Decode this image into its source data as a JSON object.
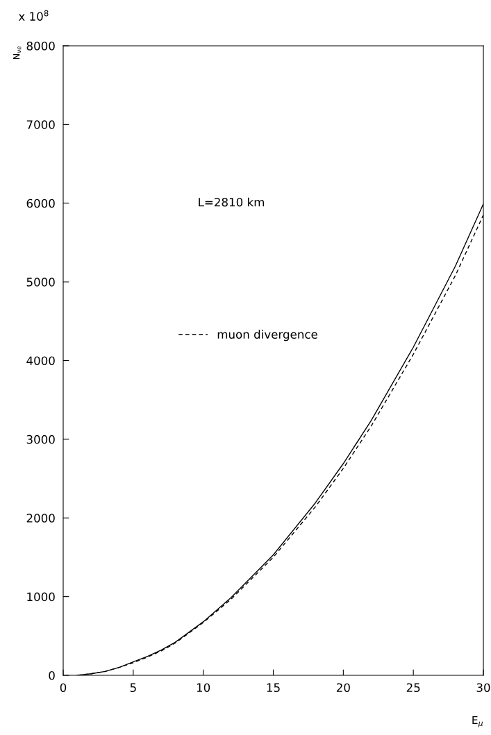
{
  "chart_data": {
    "type": "line",
    "xlabel": "E$_{μ}$",
    "ylabel": "N$_{νe}$",
    "annotations": [
      "x 10$^{8}$",
      "L=2810 km"
    ],
    "series": [
      {
        "color": "#000000",
        "line_style": "solid",
        "x": [
          1,
          2,
          3,
          4,
          5,
          6,
          7,
          8,
          10,
          12,
          15,
          18,
          20,
          22,
          25,
          28,
          30
        ],
        "values": [
          0,
          20,
          50,
          100,
          170,
          240,
          320,
          420,
          680,
          990,
          1530,
          2190,
          2690,
          3240,
          4170,
          5200,
          5990
        ]
      },
      {
        "name": "muon divergence",
        "color": "#000000",
        "line_style": "dashed",
        "x": [
          1,
          2,
          3,
          4,
          5,
          6,
          7,
          8,
          10,
          12,
          15,
          18,
          20,
          22,
          25,
          28,
          30
        ],
        "values": [
          0,
          20,
          50,
          100,
          160,
          230,
          310,
          410,
          670,
          970,
          1500,
          2140,
          2630,
          3170,
          4080,
          5080,
          5850
        ]
      }
    ],
    "xlim": [
      0,
      30
    ],
    "xticks": [
      0,
      5,
      10,
      15,
      20,
      25,
      30
    ],
    "ylim": [
      0,
      8000
    ],
    "yticks": [
      0,
      1000,
      2000,
      3000,
      4000,
      5000,
      6000,
      7000,
      8000
    ],
    "grid": false,
    "legend": "left",
    "marker": "none"
  }
}
